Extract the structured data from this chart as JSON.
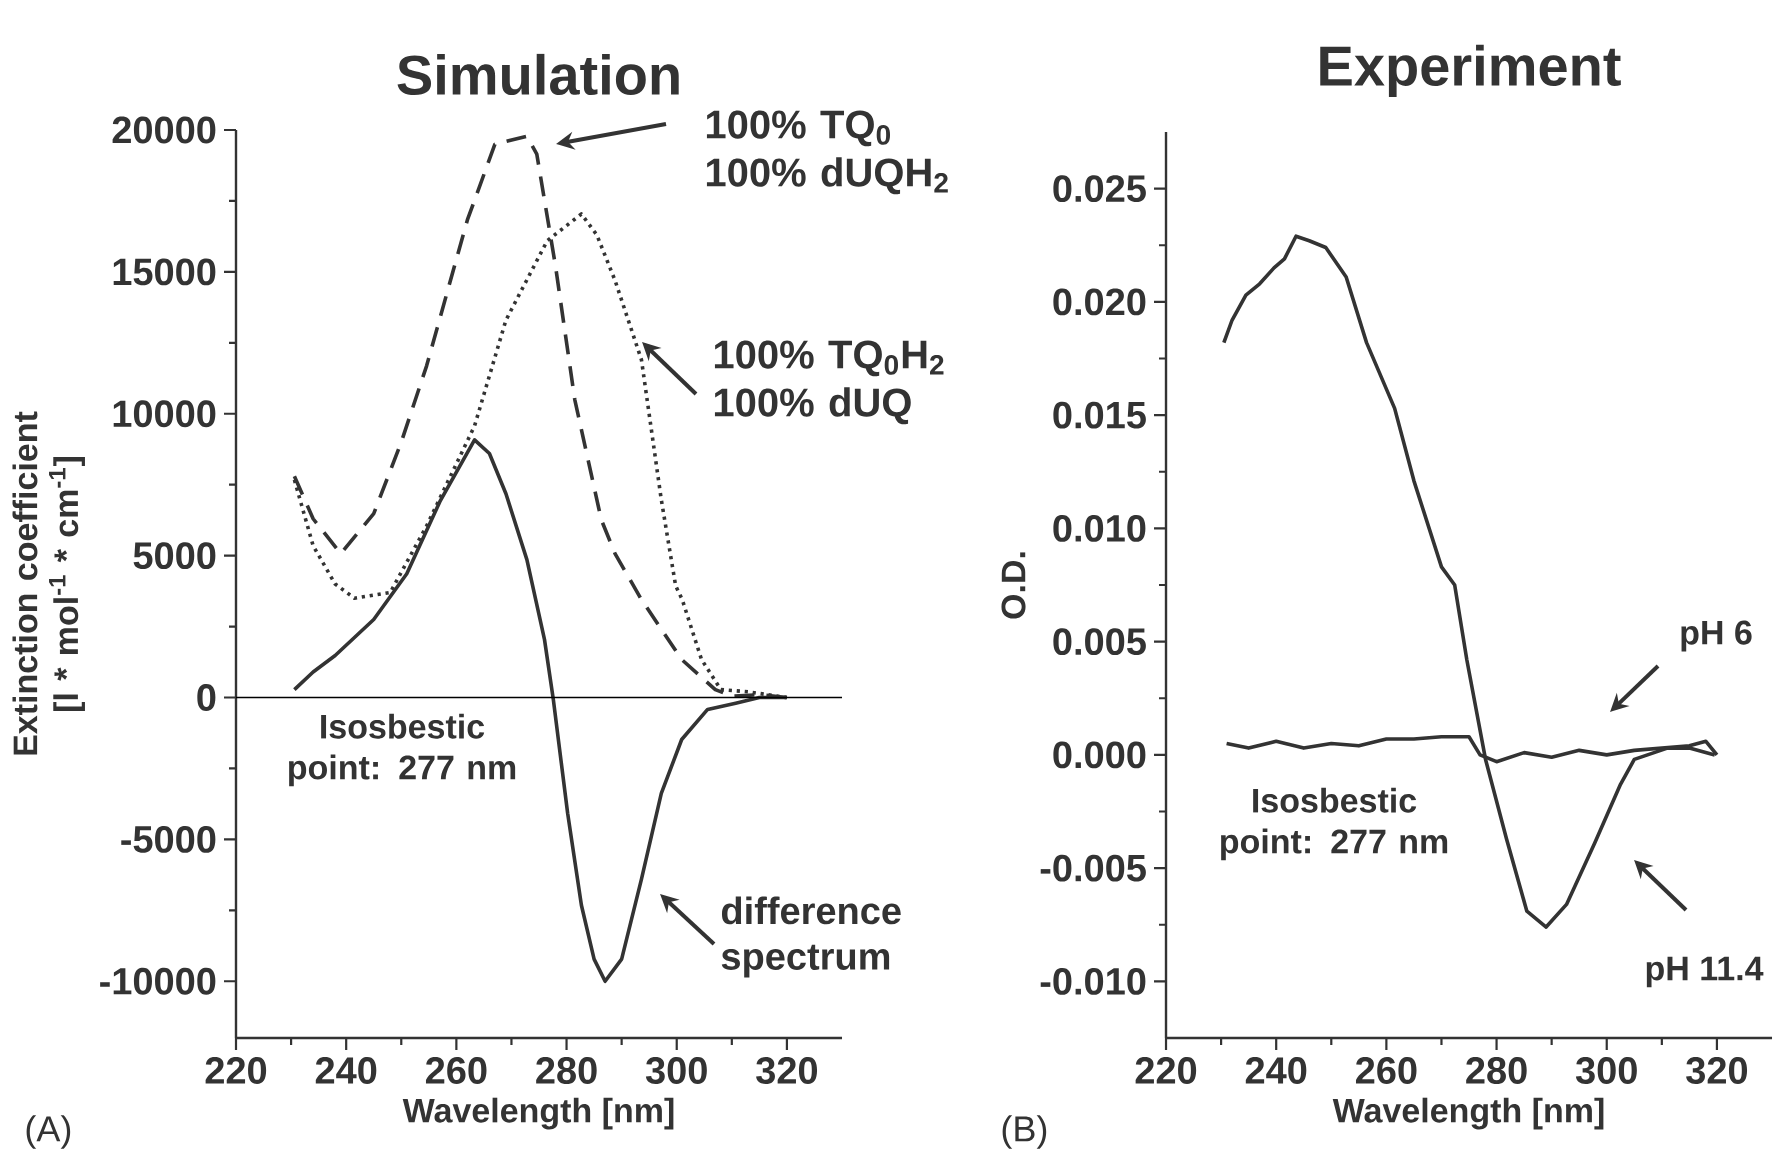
{
  "chart_data": [
    {
      "type": "line",
      "title": "Simulation",
      "xlabel": "Wavelength [nm]",
      "ylabel": "Extinction coefficient [l * mol$^{-1}$ * cm$^{-1}$]",
      "xlim": [
        220,
        330
      ],
      "xticks": [
        220,
        240,
        260,
        280,
        300,
        320
      ],
      "ylim": [
        -12000,
        20000
      ],
      "yticks": [
        -10000,
        -5000,
        0,
        5000,
        10000,
        15000,
        20000
      ],
      "series": [
        {
          "color": "#333333",
          "line_style": "dashed",
          "x": [
            230.6,
            234,
            239,
            245,
            250,
            254.6,
            262,
            267,
            272.8,
            274.6,
            278,
            281.5,
            286.3,
            288.8,
            293.6,
            300.9,
            307,
            310,
            315,
            320
          ],
          "values": [
            7800,
            6300,
            5070,
            6480,
            9000,
            11690,
            16830,
            19500,
            19780,
            19150,
            15200,
            10490,
            6270,
            5070,
            3450,
            1340,
            280,
            50,
            100,
            0
          ]
        },
        {
          "color": "#333333",
          "line_style": "dotted",
          "x": [
            230.6,
            234,
            238,
            241.5,
            248,
            254.6,
            263.3,
            269,
            276.5,
            282.7,
            285.5,
            288.8,
            293.6,
            297.2,
            299.8,
            301,
            304.5,
            308,
            313,
            320
          ],
          "values": [
            7670,
            5350,
            4000,
            3500,
            3700,
            6050,
            9570,
            13300,
            16100,
            17040,
            16300,
            14700,
            11900,
            6970,
            3940,
            3450,
            1340,
            280,
            200,
            0
          ]
        },
        {
          "color": "#333333",
          "line_style": "solid",
          "x": [
            230.6,
            234,
            238,
            245,
            251,
            257,
            263.3,
            266,
            269,
            272.8,
            276,
            277.6,
            280.2,
            282.7,
            285,
            287,
            290,
            293.6,
            297.2,
            300.9,
            305.6,
            310.7,
            315,
            320
          ],
          "values": [
            280,
            900,
            1480,
            2750,
            4360,
            6900,
            9080,
            8600,
            7180,
            4860,
            2040,
            -70,
            -4080,
            -7320,
            -9220,
            -10000,
            -9220,
            -6400,
            -3380,
            -1480,
            -420,
            -200,
            0,
            0
          ]
        }
      ],
      "ref_lines": [
        {
          "axis": "y",
          "value": 0
        }
      ],
      "annotations": [
        "100% TQ$_{0}$ 100% dUQH$_{2}$",
        "100% TQ$_{0}$H$_{2}$ 100% dUQ",
        "Isosbestic point: 277 nm",
        "difference spectrum",
        "(A)"
      ]
    },
    {
      "type": "line",
      "title": "Experiment",
      "xlabel": "Wavelength [nm]",
      "ylabel": "O.D.",
      "xlim": [
        220,
        330
      ],
      "xticks": [
        220,
        240,
        260,
        280,
        300,
        320
      ],
      "ylim": [
        -0.0125,
        0.0275
      ],
      "yticks": [
        {
          "value": -0.01,
          "label": "-0.010"
        },
        {
          "value": -0.005,
          "label": "-0.005"
        },
        {
          "value": 0,
          "label": "0.000"
        },
        {
          "value": 0.005,
          "label": "0.005"
        },
        {
          "value": 0.01,
          "label": "0.010"
        },
        {
          "value": 0.015,
          "label": "0.015"
        },
        {
          "value": 0.02,
          "label": "0.020"
        },
        {
          "value": 0.025,
          "label": "0.025"
        }
      ],
      "series": [
        {
          "name": "pH 11.4",
          "color": "#333333",
          "x": [
            230.5,
            232,
            234.5,
            237,
            239.6,
            241.5,
            243.6,
            246,
            249,
            252.7,
            256.4,
            261.5,
            265,
            270,
            272.4,
            274.6,
            278,
            281.8,
            285.5,
            289,
            292.7,
            297.8,
            302.5,
            305,
            311,
            315,
            319.6
          ],
          "values": [
            0.0182,
            0.0192,
            0.0203,
            0.0208,
            0.0215,
            0.0219,
            0.0229,
            0.0227,
            0.0224,
            0.0211,
            0.0182,
            0.0153,
            0.0121,
            0.0083,
            0.0075,
            0.0042,
            -0.0002,
            -0.0037,
            -0.0069,
            -0.0076,
            -0.0066,
            -0.0039,
            -0.0013,
            -0.0002,
            0.0003,
            0.0003,
            0.0
          ]
        },
        {
          "name": "pH 6",
          "color": "#333333",
          "x": [
            231,
            235,
            240,
            245,
            250,
            255,
            260,
            265,
            270,
            275,
            277,
            280,
            285,
            290,
            295,
            300,
            305,
            310,
            315,
            318,
            320
          ],
          "values": [
            0.0005,
            0.0003,
            0.0006,
            0.0003,
            0.0005,
            0.0004,
            0.0007,
            0.0007,
            0.0008,
            0.0008,
            0.0,
            -0.0003,
            0.0001,
            -0.0001,
            0.0002,
            0.0,
            0.0002,
            0.0003,
            0.0004,
            0.0006,
            0.0
          ]
        }
      ],
      "annotations": [
        "Isosbestic point: 277 nm",
        "(B)"
      ]
    }
  ]
}
